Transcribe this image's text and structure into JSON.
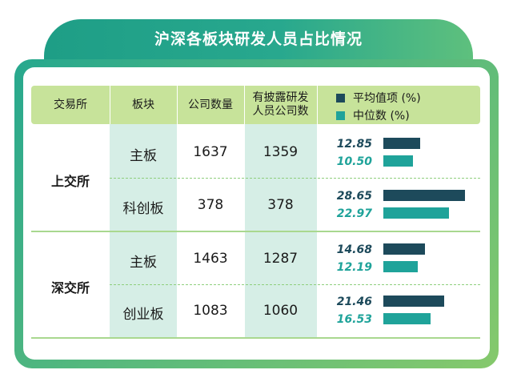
{
  "title": "沪深各板块研发人员占比情况",
  "headers": {
    "exchange": "交易所",
    "board": "板块",
    "company_count": "公司数量",
    "disclosed_line1": "有披露研发",
    "disclosed_line2": "人员公司数"
  },
  "legend": {
    "mean_label": "平均值项 (%)",
    "median_label": "中位数 (%)",
    "mean_color": "#1d4a5b",
    "median_color": "#1fa39a"
  },
  "exchanges": {
    "sh": "上交所",
    "sz": "深交所"
  },
  "rows": [
    {
      "exchange": "上交所",
      "board": "主板",
      "company_count": "1637",
      "disclosed": "1359",
      "mean": "12.85",
      "median": "10.50"
    },
    {
      "exchange": "上交所",
      "board": "科创板",
      "company_count": "378",
      "disclosed": "378",
      "mean": "28.65",
      "median": "22.97"
    },
    {
      "exchange": "深交所",
      "board": "主板",
      "company_count": "1463",
      "disclosed": "1287",
      "mean": "14.68",
      "median": "12.19"
    },
    {
      "exchange": "深交所",
      "board": "创业板",
      "company_count": "1083",
      "disclosed": "1060",
      "mean": "21.46",
      "median": "16.53"
    }
  ],
  "chart_data": {
    "type": "bar",
    "orientation": "horizontal",
    "title": "沪深各板块研发人员占比情况",
    "categories": [
      "上交所 主板",
      "上交所 科创板",
      "深交所 主板",
      "深交所 创业板"
    ],
    "series": [
      {
        "name": "平均值项 (%)",
        "values": [
          12.85,
          28.65,
          14.68,
          21.46
        ]
      },
      {
        "name": "中位数 (%)",
        "values": [
          10.5,
          22.97,
          12.19,
          16.53
        ]
      }
    ],
    "legend_position": "top-right"
  }
}
